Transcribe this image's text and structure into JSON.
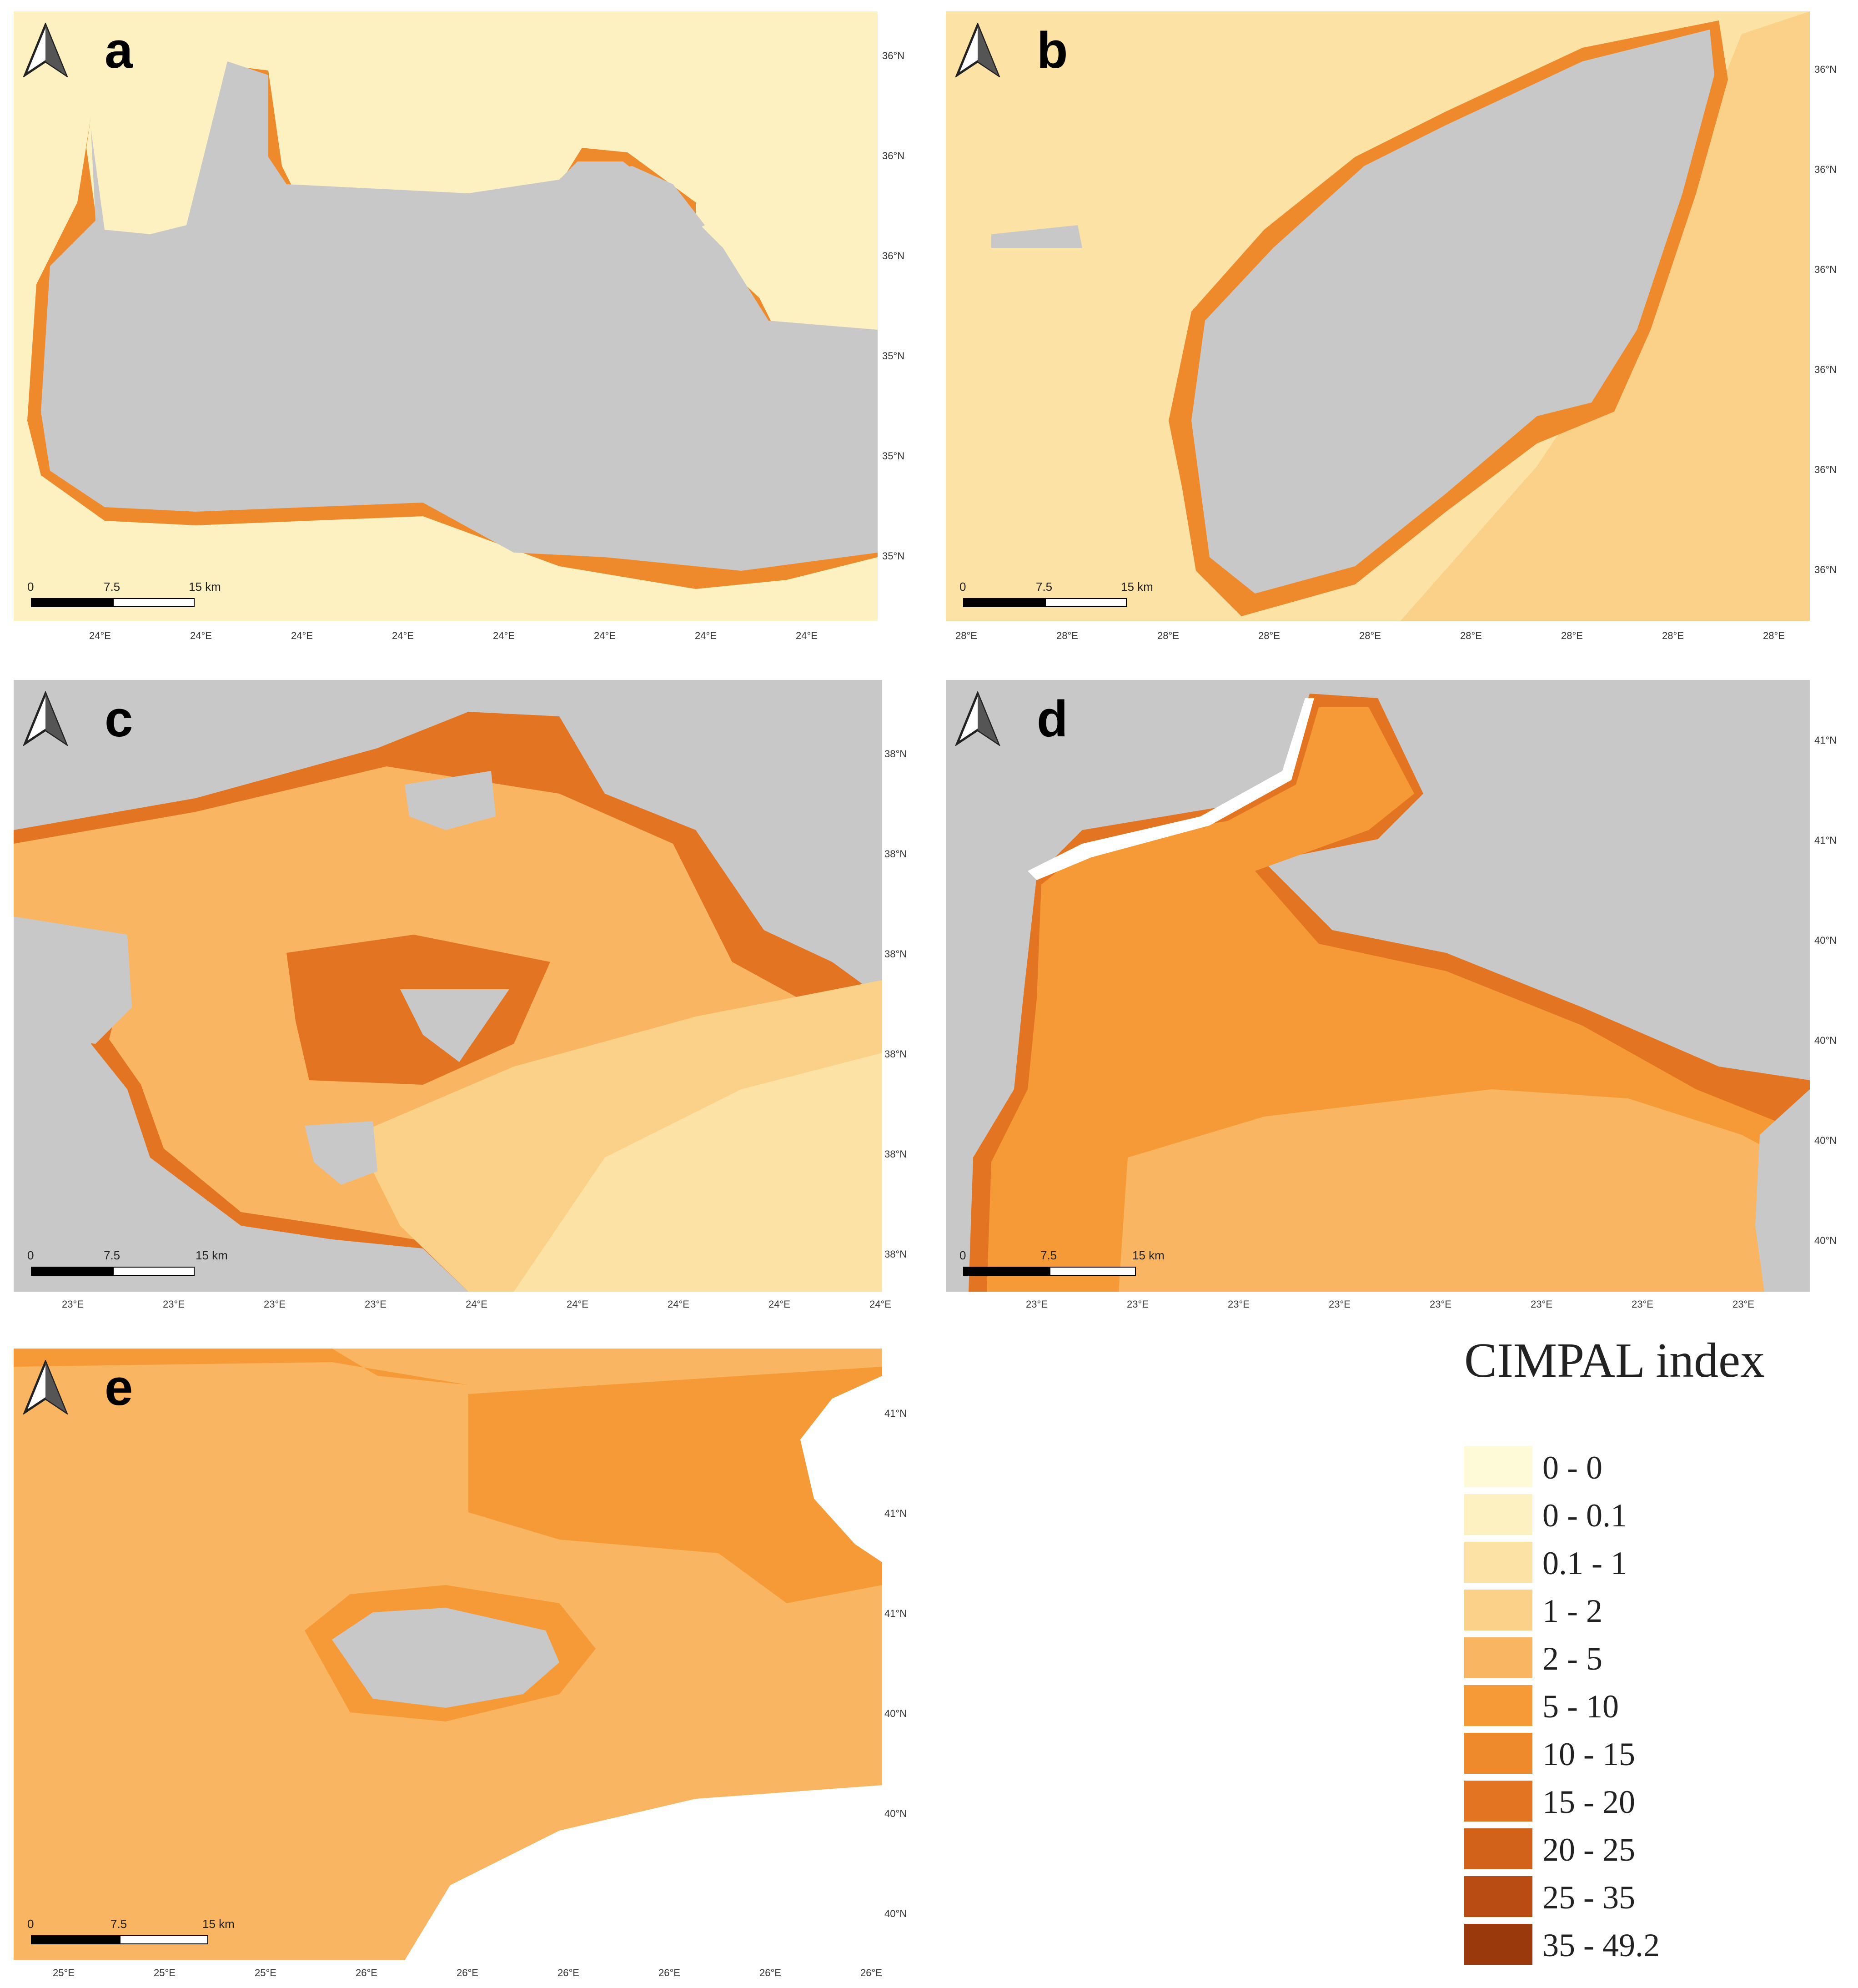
{
  "colors": {
    "land": "#c8c8c8",
    "background": "#ffffff",
    "scale_black": "#000000"
  },
  "legend": {
    "title": "CIMPAL index",
    "classes": [
      {
        "label": "0 - 0",
        "color": "#fef9d6"
      },
      {
        "label": "0 - 0.1",
        "color": "#fdf0c1"
      },
      {
        "label": "0.1 - 1",
        "color": "#fce2a4"
      },
      {
        "label": "1 - 2",
        "color": "#fbd088"
      },
      {
        "label": "2 - 5",
        "color": "#f9b562"
      },
      {
        "label": "5 - 10",
        "color": "#f69a37"
      },
      {
        "label": "10 - 15",
        "color": "#ef8a2c"
      },
      {
        "label": "15 - 20",
        "color": "#e37421"
      },
      {
        "label": "20 - 25",
        "color": "#d26219"
      },
      {
        "label": "25 - 35",
        "color": "#b94c12"
      },
      {
        "label": "35 - 49.2",
        "color": "#9a3a0c"
      }
    ]
  },
  "scale_bar": {
    "ticks": [
      "0",
      "7.5",
      "15 km"
    ]
  },
  "panels": [
    {
      "letter": "a",
      "sea_color": "#fdf0c1",
      "coast_color": "#ef8a2c",
      "lat_labels": [
        "36°N",
        "36°N",
        "36°N",
        "35°N",
        "35°N",
        "35°N"
      ],
      "lon_labels": [
        "24°E",
        "24°E",
        "24°E",
        "24°E",
        "24°E",
        "24°E",
        "24°E",
        "24°E"
      ]
    },
    {
      "letter": "b",
      "sea_color": "#fce2a4",
      "coast_color": "#ef8a2c",
      "lat_labels": [
        "36°N",
        "36°N",
        "36°N",
        "36°N",
        "36°N",
        "36°N"
      ],
      "lon_labels": [
        "28°E",
        "28°E",
        "28°E",
        "28°E",
        "28°E",
        "28°E",
        "28°E",
        "28°E",
        "28°E"
      ]
    },
    {
      "letter": "c",
      "sea_color": "#f9b562",
      "coast_color": "#e37421",
      "lat_labels": [
        "38°N",
        "38°N",
        "38°N",
        "38°N",
        "38°N",
        "38°N"
      ],
      "lon_labels": [
        "23°E",
        "23°E",
        "23°E",
        "23°E",
        "24°E",
        "24°E",
        "24°E",
        "24°E",
        "24°E"
      ]
    },
    {
      "letter": "d",
      "sea_color": "#f69a37",
      "coast_color": "#e37421",
      "lat_labels": [
        "41°N",
        "41°N",
        "40°N",
        "40°N",
        "40°N",
        "40°N"
      ],
      "lon_labels": [
        "23°E",
        "23°E",
        "23°E",
        "23°E",
        "23°E",
        "23°E",
        "23°E",
        "23°E"
      ]
    },
    {
      "letter": "e",
      "sea_color": "#f9b562",
      "coast_color": "#f69a37",
      "lat_labels": [
        "41°N",
        "41°N",
        "41°N",
        "40°N",
        "40°N",
        "40°N"
      ],
      "lon_labels": [
        "25°E",
        "25°E",
        "25°E",
        "26°E",
        "26°E",
        "26°E",
        "26°E",
        "26°E",
        "26°E"
      ]
    }
  ]
}
